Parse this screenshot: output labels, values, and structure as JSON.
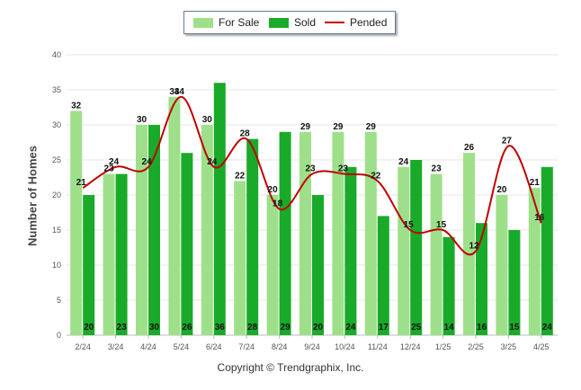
{
  "chart_data": {
    "type": "bar",
    "categories": [
      "2/24",
      "3/24",
      "4/24",
      "5/24",
      "6/24",
      "7/24",
      "8/24",
      "9/24",
      "10/24",
      "11/24",
      "12/24",
      "1/25",
      "2/25",
      "3/25",
      "4/25"
    ],
    "series": [
      {
        "name": "For Sale",
        "type": "bar",
        "color": "#9ee08a",
        "values": [
          32,
          23,
          30,
          34,
          30,
          22,
          20,
          29,
          29,
          29,
          24,
          23,
          26,
          20,
          21
        ]
      },
      {
        "name": "Sold",
        "type": "bar",
        "color": "#1aaa2a",
        "values": [
          20,
          23,
          30,
          26,
          36,
          28,
          29,
          20,
          24,
          17,
          25,
          14,
          16,
          15,
          24
        ]
      },
      {
        "name": "Pended",
        "type": "line",
        "color": "#c00000",
        "values": [
          21,
          24,
          24,
          34,
          24,
          28,
          18,
          23,
          23,
          22,
          15,
          15,
          12,
          27,
          16
        ]
      }
    ],
    "ylabel": "Number of Homes",
    "xlabel": "",
    "ylim": [
      0,
      40
    ],
    "yticks": [
      0,
      5,
      10,
      15,
      20,
      25,
      30,
      35,
      40
    ],
    "grid": true,
    "legend_position": "top-center"
  },
  "footer": {
    "copyright": "Copyright © Trendgraphix, Inc."
  }
}
